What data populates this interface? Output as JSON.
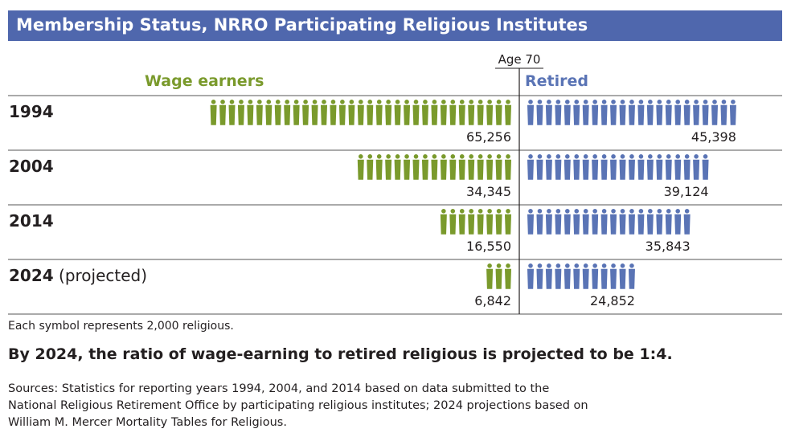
{
  "title": "Membership Status, NRRO Participating Religious Institutes",
  "colors": {
    "title_bar": "#4f67ad",
    "wage": "#7a9a2c",
    "retired": "#5a74b5",
    "rule": "#555555"
  },
  "chart_data": {
    "type": "pictogram",
    "divider_label": "Age 70",
    "unit_per_symbol": 2000,
    "series": [
      {
        "name": "Wage earners",
        "values": [
          65256,
          34345,
          16550,
          6842
        ]
      },
      {
        "name": "Retired",
        "values": [
          45398,
          39124,
          35843,
          24852
        ]
      }
    ],
    "rows": [
      {
        "year": "1994",
        "suffix": "",
        "wage": 65256,
        "wage_label": "65,256",
        "retired": 45398,
        "retired_label": "45,398"
      },
      {
        "year": "2004",
        "suffix": "",
        "wage": 34345,
        "wage_label": "34,345",
        "retired": 39124,
        "retired_label": "39,124"
      },
      {
        "year": "2014",
        "suffix": "",
        "wage": 16550,
        "wage_label": "16,550",
        "retired": 35843,
        "retired_label": "35,843"
      },
      {
        "year": "2024",
        "suffix": " (projected)",
        "wage": 6842,
        "wage_label": "6,842",
        "retired": 24852,
        "retired_label": "24,852"
      }
    ]
  },
  "note": "Each symbol represents 2,000 religious.",
  "headline": "By 2024, the ratio of wage-earning to retired religious is projected to be 1:4.",
  "sources": [
    "Sources: Statistics for reporting years 1994, 2004, and 2014 based on data submitted to the",
    "National Religious Retirement Office by participating religious institutes; 2024 projections based on",
    "William M. Mercer Mortality Tables for Religious."
  ]
}
